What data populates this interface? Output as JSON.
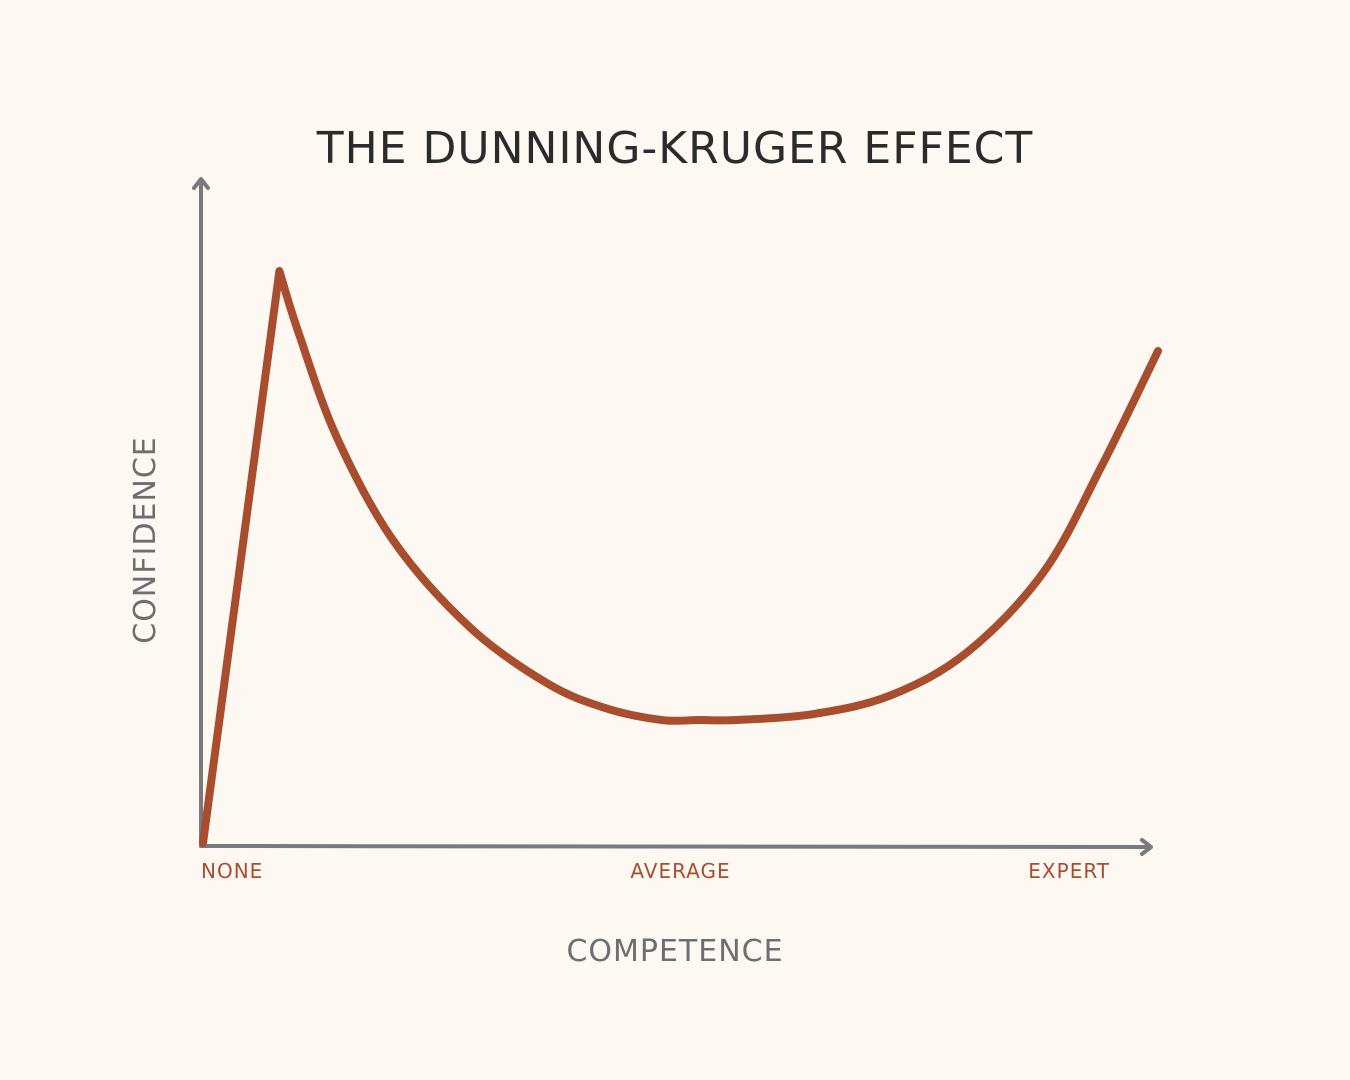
{
  "chart_data": {
    "type": "line",
    "title": "THE DUNNING-KRUGER EFFECT",
    "xlabel": "COMPETENCE",
    "ylabel": "CONFIDENCE",
    "x_tick_labels": [
      {
        "label": "NONE",
        "value": 0
      },
      {
        "label": "AVERAGE",
        "value": 50
      },
      {
        "label": "EXPERT",
        "value": 100
      }
    ],
    "xlim": [
      0,
      100
    ],
    "ylim": [
      0,
      100
    ],
    "grid": false,
    "legend": "none",
    "series": [
      {
        "x": [
          0,
          8,
          10,
          14,
          20,
          28,
          36,
          42,
          48,
          52,
          56,
          64,
          72,
          80,
          88,
          94,
          100
        ],
        "y": [
          0,
          93,
          83,
          66,
          49,
          35,
          26,
          22,
          20,
          20,
          20,
          21,
          24,
          31,
          44,
          61,
          80
        ]
      }
    ],
    "colors": {
      "curve": "#a84e2e",
      "axis": "#7a7a7a",
      "tick_label": "#a84e2e",
      "background": "#fdf8f2"
    }
  }
}
